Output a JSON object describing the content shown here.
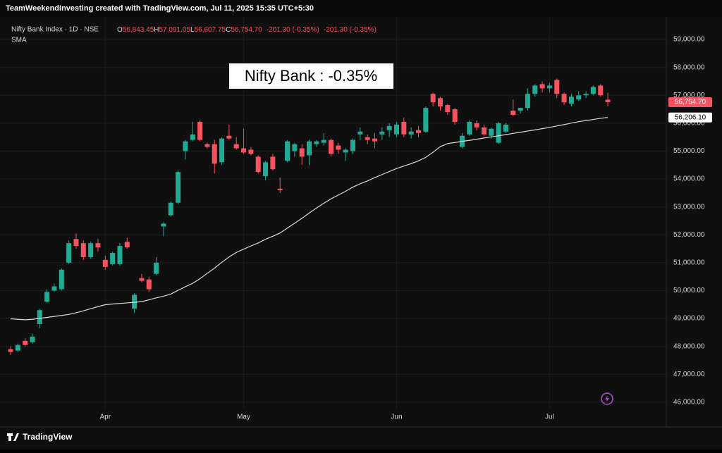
{
  "header": "TeamWeekendInvesting created with TradingView.com, Jul 11, 2025 15:35 UTC+5:30",
  "chart_data": {
    "type": "candlestick",
    "symbol": "Nifty Bank Index · 1D · NSE",
    "ohlc": [
      {
        "key": "O",
        "value": "56,843.45"
      },
      {
        "key": "H",
        "value": "57,091.05"
      },
      {
        "key": "L",
        "value": "56,607.75"
      },
      {
        "key": "C",
        "value": "56,754.70"
      }
    ],
    "change": [
      "-201.30 (-0.35%)",
      "-201.30 (-0.35%)"
    ],
    "annotation": "Nifty Bank : -0.35%",
    "categories": [
      null,
      null,
      null,
      null,
      null,
      null,
      null,
      null,
      null,
      null,
      null,
      null,
      null,
      "Apr",
      null,
      null,
      null,
      null,
      null,
      null,
      null,
      null,
      null,
      null,
      null,
      null,
      null,
      null,
      null,
      null,
      null,
      null,
      "May",
      null,
      null,
      null,
      null,
      null,
      null,
      null,
      null,
      null,
      null,
      null,
      null,
      null,
      null,
      null,
      null,
      null,
      null,
      null,
      null,
      "Jun",
      null,
      null,
      null,
      null,
      null,
      null,
      null,
      null,
      null,
      null,
      null,
      null,
      null,
      null,
      null,
      null,
      null,
      null,
      null,
      null,
      "Jul",
      null,
      null,
      null,
      null,
      null,
      null,
      null,
      null
    ],
    "series": [
      {
        "up_color": "#22ab94",
        "down_color": "#f7525f",
        "open": [
          47900,
          47850,
          48200,
          48150,
          48800,
          49600,
          50000,
          50050,
          51000,
          51850,
          51700,
          51200,
          51700,
          51100,
          50950,
          50950,
          51750,
          49350,
          50450,
          50400,
          50600,
          52300,
          52700,
          53150,
          55000,
          55400,
          56050,
          55250,
          55250,
          54600,
          55550,
          55250,
          55100,
          55050,
          54800,
          54100,
          54800,
          53650,
          54650,
          55000,
          55100,
          54850,
          55250,
          55300,
          55400,
          55200,
          54950,
          55000,
          55600,
          55500,
          55450,
          55600,
          55750,
          55600,
          56050,
          55600,
          55750,
          55700,
          57050,
          56900,
          56650,
          56500,
          55150,
          55600,
          56000,
          55850,
          55550,
          55300,
          55700,
          56450,
          56450,
          56550,
          57050,
          57400,
          57250,
          57550,
          57050,
          56700,
          56850,
          57000,
          57050,
          57350,
          56843.45
        ],
        "high": [
          48000,
          48100,
          48300,
          48450,
          49350,
          50050,
          50250,
          50800,
          51800,
          52050,
          51800,
          51750,
          51850,
          51250,
          51400,
          51700,
          51900,
          49900,
          50600,
          50500,
          51200,
          52450,
          53200,
          54300,
          55400,
          56050,
          56100,
          55300,
          55400,
          55500,
          55950,
          55500,
          55800,
          55150,
          54850,
          54650,
          54900,
          54050,
          55400,
          55300,
          55250,
          55400,
          55400,
          55650,
          55450,
          55300,
          55100,
          55450,
          55850,
          55600,
          55650,
          55850,
          56000,
          56050,
          56200,
          55850,
          55900,
          56600,
          57100,
          56950,
          56700,
          56550,
          55650,
          56100,
          56100,
          55950,
          55850,
          56050,
          56000,
          56850,
          56550,
          57250,
          57400,
          57500,
          57450,
          57600,
          57100,
          57050,
          57150,
          57150,
          57350,
          57400,
          57091.05
        ],
        "low": [
          47700,
          47800,
          48000,
          48100,
          48650,
          49550,
          49950,
          50000,
          50950,
          51500,
          51100,
          51150,
          51400,
          50750,
          50900,
          50900,
          51500,
          49200,
          50300,
          49950,
          50550,
          51950,
          52650,
          53100,
          54700,
          55350,
          55350,
          55100,
          54200,
          54500,
          55400,
          55050,
          54900,
          54850,
          54200,
          53950,
          54300,
          53500,
          54600,
          54800,
          54500,
          54500,
          55150,
          55200,
          54800,
          54900,
          54650,
          54900,
          55400,
          55250,
          55100,
          55400,
          55500,
          55500,
          55500,
          55450,
          55500,
          55650,
          56600,
          56450,
          56300,
          55950,
          55100,
          55550,
          55750,
          55550,
          55450,
          55250,
          55650,
          56250,
          56350,
          56450,
          56950,
          57100,
          57100,
          56900,
          56650,
          56600,
          56800,
          56900,
          57000,
          56950,
          56607.75
        ],
        "close": [
          47800,
          48050,
          48050,
          48350,
          49300,
          49950,
          50150,
          50750,
          51700,
          51600,
          51200,
          51700,
          51550,
          50850,
          51350,
          51600,
          51550,
          49850,
          50350,
          50050,
          51000,
          52400,
          53150,
          54250,
          55350,
          55600,
          55400,
          55150,
          54550,
          55450,
          55450,
          55100,
          54950,
          54900,
          54250,
          54600,
          54350,
          53600,
          55350,
          55250,
          54800,
          55350,
          55350,
          55400,
          54900,
          55050,
          55050,
          55400,
          55700,
          55400,
          55350,
          55700,
          55900,
          55950,
          55600,
          55700,
          55650,
          56550,
          56750,
          56600,
          56400,
          56050,
          55550,
          56050,
          55850,
          55600,
          55800,
          56000,
          55950,
          56300,
          56550,
          57050,
          57350,
          57250,
          57350,
          57050,
          56750,
          56950,
          57000,
          57050,
          57300,
          57000,
          56754.7
        ]
      },
      {
        "name": "SMA",
        "color": "#d9d9d9",
        "values": [
          48990,
          48970,
          48955,
          48970,
          49005,
          49040,
          49075,
          49110,
          49145,
          49205,
          49275,
          49350,
          49425,
          49495,
          49520,
          49540,
          49560,
          49580,
          49605,
          49670,
          49740,
          49800,
          49875,
          50010,
          50140,
          50260,
          50425,
          50620,
          50805,
          51015,
          51205,
          51370,
          51485,
          51600,
          51710,
          51840,
          51950,
          52065,
          52240,
          52415,
          52590,
          52780,
          52960,
          53130,
          53290,
          53425,
          53560,
          53710,
          53830,
          53930,
          54050,
          54160,
          54265,
          54375,
          54465,
          54550,
          54650,
          54775,
          54960,
          55160,
          55270,
          55305,
          55350,
          55385,
          55425,
          55470,
          55510,
          55550,
          55590,
          55635,
          55675,
          55720,
          55760,
          55805,
          55850,
          55900,
          55950,
          56005,
          56055,
          56095,
          56135,
          56175,
          56206.1
        ]
      }
    ],
    "ylim": [
      45770,
      59810
    ],
    "yticks": [
      {
        "value": 46000,
        "label": "46,000.00"
      },
      {
        "value": 47000,
        "label": "47,000.00"
      },
      {
        "value": 48000,
        "label": "48,000.00"
      },
      {
        "value": 49000,
        "label": "49,000.00"
      },
      {
        "value": 50000,
        "label": "50,000.00"
      },
      {
        "value": 51000,
        "label": "51,000.00"
      },
      {
        "value": 52000,
        "label": "52,000.00"
      },
      {
        "value": 53000,
        "label": "53,000.00"
      },
      {
        "value": 54000,
        "label": "54,000.00"
      },
      {
        "value": 55000,
        "label": "55,000.00"
      },
      {
        "value": 56000,
        "label": "56,000.00"
      },
      {
        "value": 57000,
        "label": "57,000.00"
      },
      {
        "value": 58000,
        "label": "58,000.00"
      },
      {
        "value": 59000,
        "label": "59,000.00"
      }
    ],
    "grid": true,
    "price_tags": [
      {
        "value": 56754.7,
        "label": "56,754.70",
        "color": "#f7525f"
      },
      {
        "value": 56206.1,
        "label": "56,206.10",
        "color": "#ffffff"
      }
    ],
    "footer": "TradingView"
  }
}
